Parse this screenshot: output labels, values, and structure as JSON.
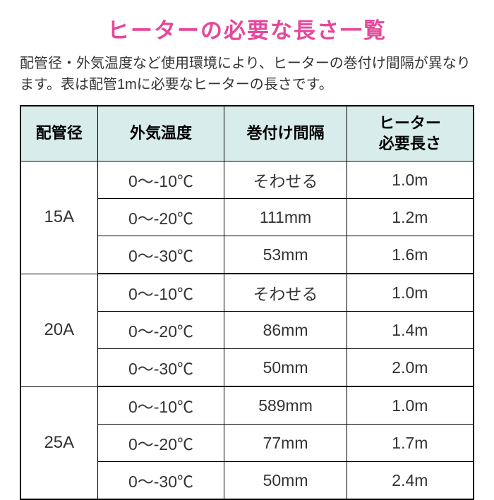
{
  "title": "ヒーターの必要な長さ一覧",
  "description": "配管径・外気温度など使用環境により、ヒーターの巻付け間隔が異なります。表は配管1mに必要なヒーターの長さです。",
  "table": {
    "headers": {
      "col1": "配管径",
      "col2": "外気温度",
      "col3": "巻付け間隔",
      "col4": "ヒーター\n必要長さ"
    },
    "groups": [
      {
        "diameter": "15A",
        "rows": [
          {
            "temp": "0〜-10℃",
            "interval": "そわせる",
            "length": "1.0m"
          },
          {
            "temp": "0〜-20℃",
            "interval": "111mm",
            "length": "1.2m"
          },
          {
            "temp": "0〜-30℃",
            "interval": "53mm",
            "length": "1.6m"
          }
        ]
      },
      {
        "diameter": "20A",
        "rows": [
          {
            "temp": "0〜-10℃",
            "interval": "そわせる",
            "length": "1.0m"
          },
          {
            "temp": "0〜-20℃",
            "interval": "86mm",
            "length": "1.4m"
          },
          {
            "temp": "0〜-30℃",
            "interval": "50mm",
            "length": "2.0m"
          }
        ]
      },
      {
        "diameter": "25A",
        "rows": [
          {
            "temp": "0〜-10℃",
            "interval": "589mm",
            "length": "1.0m"
          },
          {
            "temp": "0〜-20℃",
            "interval": "77mm",
            "length": "1.7m"
          },
          {
            "temp": "0〜-30℃",
            "interval": "50mm",
            "length": "2.4m"
          }
        ]
      }
    ],
    "header_bg_color": "#d9ecec",
    "border_color": "#000000",
    "title_color": "#e6479b"
  }
}
